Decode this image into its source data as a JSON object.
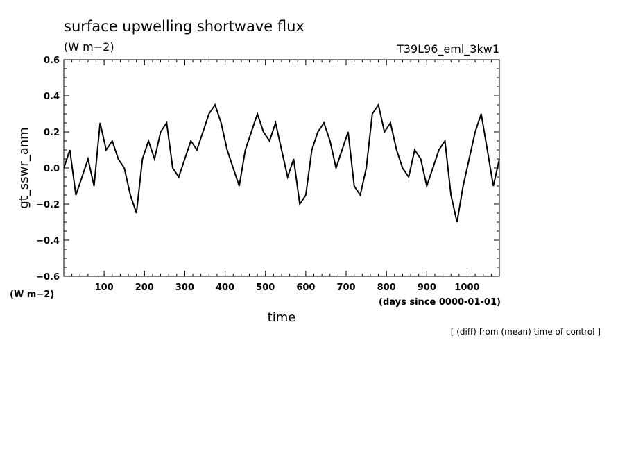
{
  "chart_data": {
    "type": "line",
    "title": "surface upwelling shortwave flux",
    "title_unit": "(W m−2)",
    "experiment": "T39L96_eml_3kw1",
    "xlabel": "time",
    "xunit": "(days since 0000-01-01)",
    "ylabel": "gt_sswr_anm",
    "yunit": "(W m−2)",
    "note": "[ (diff) from (mean) time of control ]",
    "xlim": [
      0,
      1080
    ],
    "ylim": [
      -0.6,
      0.6
    ],
    "xticks": [
      100,
      200,
      300,
      400,
      500,
      600,
      700,
      800,
      900,
      1000
    ],
    "xtick_labels": [
      "100",
      "200",
      "300",
      "400",
      "500",
      "600",
      "700",
      "800",
      "900",
      "1000"
    ],
    "yticks": [
      -0.6,
      -0.4,
      -0.2,
      0.0,
      0.2,
      0.4,
      0.6
    ],
    "ytick_labels": [
      "−0.6",
      "−0.4",
      "−0.2",
      "0.0",
      "0.2",
      "0.4",
      "0.6"
    ],
    "series": [
      {
        "x": [
          0,
          15,
          30,
          45,
          60,
          75,
          90,
          105,
          120,
          135,
          150,
          165,
          180,
          195,
          210,
          225,
          240,
          255,
          270,
          285,
          300,
          315,
          330,
          345,
          360,
          375,
          390,
          405,
          420,
          435,
          450,
          465,
          480,
          495,
          510,
          525,
          540,
          555,
          570,
          585,
          600,
          615,
          630,
          645,
          660,
          675,
          690,
          705,
          720,
          735,
          750,
          765,
          780,
          795,
          810,
          825,
          840,
          855,
          870,
          885,
          900,
          915,
          930,
          945,
          960,
          975,
          990,
          1005,
          1020,
          1035,
          1050,
          1065,
          1080
        ],
        "values": [
          0.0,
          0.1,
          -0.15,
          -0.05,
          0.05,
          -0.1,
          0.25,
          0.1,
          0.15,
          0.05,
          0.0,
          -0.15,
          -0.25,
          0.05,
          0.15,
          0.05,
          0.2,
          0.25,
          0.0,
          -0.05,
          0.05,
          0.15,
          0.1,
          0.2,
          0.3,
          0.35,
          0.25,
          0.1,
          0.0,
          -0.1,
          0.1,
          0.2,
          0.3,
          0.2,
          0.15,
          0.25,
          0.1,
          -0.05,
          0.05,
          -0.2,
          -0.15,
          0.1,
          0.2,
          0.25,
          0.15,
          0.0,
          0.1,
          0.2,
          -0.1,
          -0.15,
          0.0,
          0.3,
          0.35,
          0.2,
          0.25,
          0.1,
          0.0,
          -0.05,
          0.1,
          0.05,
          -0.1,
          0.0,
          0.1,
          0.15,
          -0.15,
          -0.3,
          -0.1,
          0.05,
          0.2,
          0.3,
          0.1,
          -0.1,
          0.05
        ]
      }
    ]
  }
}
